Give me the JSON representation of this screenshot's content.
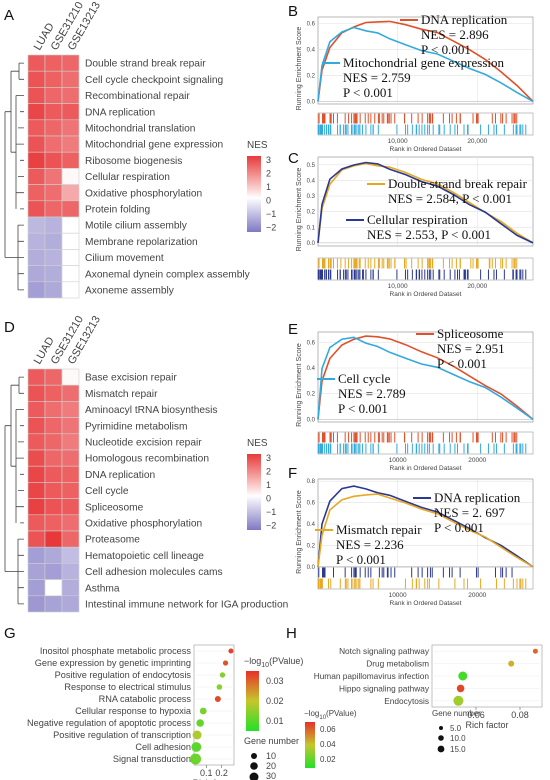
{
  "panel_labels": [
    "A",
    "B",
    "C",
    "D",
    "E",
    "F",
    "G",
    "H"
  ],
  "nes_legend": {
    "title": "NES",
    "ticks": [
      "3",
      "2",
      "1",
      "0",
      "−1",
      "−2"
    ]
  },
  "gsea_axes": {
    "ylabel": "Running Enrichment Score",
    "xlabel": "Rank in Ordered Dataset",
    "xticks": [
      "10,000",
      "20,000"
    ]
  },
  "gsea_axes_small": {
    "xticks": [
      "10000",
      "20000"
    ]
  },
  "dot_legend_G": {
    "color_title_pre": "−log",
    "color_title_sub": "10",
    "color_title_post": "(PValue)",
    "color_ticks": [
      "0.03",
      "0.02",
      "0.01"
    ],
    "size_title": "Gene number",
    "size_ticks": [
      "10",
      "20",
      "30"
    ]
  },
  "dot_legend_H": {
    "color_title_pre": "−log",
    "color_title_sub": "10",
    "color_title_post": "(PValue)",
    "color_ticks": [
      "0.06",
      "0.04",
      "0.02"
    ],
    "size_title": "Gene number",
    "size_ticks": [
      "5.0",
      "10.0",
      "15.0"
    ]
  },
  "chart_data": [
    {
      "panel": "A",
      "type": "heatmap",
      "columns": [
        "LUAD",
        "GSE31210",
        "GSE13213"
      ],
      "rows": [
        "Double strand break repair",
        "Cell cycle checkpoint signaling",
        "Recombinational repair",
        "DNA replication",
        "Mitochondrial translation",
        "Mitochondrial gene expression",
        "Ribosome biogenesis",
        "Cellular respiration",
        "Oxidative phosphorylation",
        "Protein folding",
        "Motile cilium assembly",
        "Membrane repolarization",
        "Cilium movement",
        "Axonemal dynein complex assembly",
        "Axoneme assembly"
      ],
      "values": [
        [
          2.5,
          2.4,
          2.3
        ],
        [
          2.6,
          2.4,
          2.2
        ],
        [
          2.6,
          2.3,
          2.2
        ],
        [
          2.8,
          2.5,
          2.5
        ],
        [
          2.5,
          2.3,
          2.1
        ],
        [
          2.6,
          2.2,
          2.0
        ],
        [
          2.9,
          2.6,
          2.4
        ],
        [
          2.5,
          2.1,
          0.1
        ],
        [
          2.4,
          2.2,
          1.3
        ],
        [
          2.6,
          2.3,
          2.3
        ],
        [
          -1.3,
          -1.4,
          0
        ],
        [
          -1.4,
          -1.5,
          0
        ],
        [
          -1.5,
          -1.4,
          0
        ],
        [
          -1.6,
          -1.5,
          0
        ],
        [
          -1.8,
          -1.6,
          0
        ]
      ],
      "color_range": [
        -2.5,
        3.2
      ]
    },
    {
      "panel": "B",
      "type": "line",
      "ylabel": "Running Enrichment Score",
      "xlabel": "Rank in Ordered Dataset",
      "xlim": [
        0,
        27000
      ],
      "ylim": [
        -0.02,
        0.65
      ],
      "yticks": [
        "0.0",
        "0.2",
        "0.4",
        "0.6"
      ],
      "xticks": [
        10000,
        20000
      ],
      "series": [
        {
          "name": "DNA replication",
          "nes": "NES = 2.896",
          "p": "P < 0.001",
          "color": "#e0502a",
          "x": [
            0,
            500,
            1500,
            3000,
            4500,
            6000,
            7500,
            9000,
            11000,
            13000,
            15000,
            17000,
            19000,
            21000,
            23000,
            25000,
            27000
          ],
          "y": [
            0,
            0.24,
            0.42,
            0.52,
            0.57,
            0.61,
            0.62,
            0.61,
            0.59,
            0.56,
            0.52,
            0.46,
            0.4,
            0.33,
            0.22,
            0.12,
            0
          ]
        },
        {
          "name": "Mitochondrial gene expression",
          "nes": "NES = 2.759",
          "p": "P < 0.001",
          "color": "#33aadd",
          "x": [
            0,
            500,
            1500,
            3000,
            4500,
            6000,
            7500,
            9000,
            11000,
            13000,
            15000,
            17000,
            19000,
            21000,
            23000,
            25000,
            27000
          ],
          "y": [
            0,
            0.28,
            0.45,
            0.53,
            0.57,
            0.55,
            0.52,
            0.48,
            0.44,
            0.4,
            0.36,
            0.31,
            0.26,
            0.2,
            0.14,
            0.07,
            0
          ]
        }
      ]
    },
    {
      "panel": "C",
      "type": "line",
      "ylabel": "Running Enrichment Score",
      "xlabel": "Rank in Ordered Dataset",
      "xlim": [
        0,
        27000
      ],
      "ylim": [
        -0.02,
        0.55
      ],
      "yticks": [
        "0.0",
        "0.1",
        "0.2",
        "0.3",
        "0.4",
        "0.5"
      ],
      "xticks": [
        10000,
        20000
      ],
      "series": [
        {
          "name": "Double strand break repair",
          "nes": "NES = 2.584, P < 0.001",
          "color": "#e8a820",
          "x": [
            0,
            500,
            1500,
            3000,
            4500,
            6000,
            7500,
            9000,
            11000,
            13000,
            15000,
            17000,
            19000,
            21000,
            23000,
            25000,
            27000
          ],
          "y": [
            0,
            0.22,
            0.38,
            0.46,
            0.49,
            0.51,
            0.5,
            0.48,
            0.45,
            0.41,
            0.37,
            0.32,
            0.26,
            0.2,
            0.13,
            0.06,
            0
          ]
        },
        {
          "name": "Cellular respiration",
          "nes": "NES = 2.553, P < 0.001",
          "color": "#2b3990",
          "x": [
            0,
            500,
            1500,
            3000,
            4500,
            6000,
            7500,
            9000,
            11000,
            13000,
            15000,
            17000,
            19000,
            21000,
            23000,
            25000,
            27000
          ],
          "y": [
            0,
            0.25,
            0.4,
            0.47,
            0.5,
            0.52,
            0.5,
            0.47,
            0.44,
            0.4,
            0.36,
            0.31,
            0.25,
            0.19,
            0.12,
            0.05,
            0
          ]
        }
      ]
    },
    {
      "panel": "D",
      "type": "heatmap",
      "columns": [
        "LUAD",
        "GSE31210",
        "GSE13213"
      ],
      "rows": [
        "Base excision repair",
        "Mismatch repair",
        "Aminoacyl tRNA biosynthesis",
        "Pyrimidine metabolism",
        "Nucleotide excision repair",
        "Homologous recombination",
        "DNA replication",
        "Cell cycle",
        "Spliceosome",
        "Oxidative phosphorylation",
        "Proteasome",
        "Hematopoietic cell lineage",
        "Cell adhesion molecules cams",
        "Asthma",
        "Intestinal immune network for IGA production"
      ],
      "values": [
        [
          2.5,
          2.3,
          0.1
        ],
        [
          2.6,
          2.4,
          2.2
        ],
        [
          2.5,
          2.2,
          2.0
        ],
        [
          2.6,
          2.3,
          2.1
        ],
        [
          2.5,
          2.3,
          2.0
        ],
        [
          2.7,
          2.3,
          2.2
        ],
        [
          2.8,
          2.5,
          2.4
        ],
        [
          2.8,
          2.5,
          2.4
        ],
        [
          2.9,
          2.6,
          2.5
        ],
        [
          2.5,
          2.4,
          2.2
        ],
        [
          2.6,
          3.1,
          2.3
        ],
        [
          -1.8,
          -1.6,
          -1.2
        ],
        [
          -1.7,
          -1.8,
          -1.4
        ],
        [
          -1.8,
          0,
          -1.5
        ],
        [
          -1.9,
          -1.7,
          -1.6
        ]
      ],
      "color_range": [
        -2.5,
        3.2
      ]
    },
    {
      "panel": "E",
      "type": "line",
      "ylabel": "Running Enrichment Score",
      "xlabel": "Rank in Ordered Dataset",
      "xlim": [
        0,
        27000
      ],
      "ylim": [
        -0.02,
        0.68
      ],
      "yticks": [
        "0.0",
        "0.2",
        "0.4",
        "0.6"
      ],
      "xticks": [
        10000,
        20000
      ],
      "series": [
        {
          "name": "Spliceosome",
          "nes": "NES = 2.951",
          "p": "P < 0.001",
          "color": "#e0502a",
          "x": [
            0,
            500,
            1500,
            3000,
            4500,
            6000,
            7500,
            9000,
            11000,
            13000,
            15000,
            17000,
            19000,
            21000,
            23000,
            25000,
            27000
          ],
          "y": [
            0,
            0.3,
            0.48,
            0.57,
            0.62,
            0.65,
            0.65,
            0.62,
            0.58,
            0.53,
            0.47,
            0.41,
            0.34,
            0.27,
            0.19,
            0.1,
            0
          ]
        },
        {
          "name": "Cell cycle",
          "nes": "NES = 2.789",
          "p": "P < 0.001",
          "color": "#33aadd",
          "x": [
            0,
            500,
            1500,
            3000,
            4500,
            6000,
            7500,
            9000,
            11000,
            13000,
            15000,
            17000,
            19000,
            21000,
            23000,
            25000,
            27000
          ],
          "y": [
            0,
            0.4,
            0.55,
            0.62,
            0.64,
            0.6,
            0.56,
            0.52,
            0.48,
            0.44,
            0.4,
            0.35,
            0.3,
            0.24,
            0.17,
            0.09,
            0
          ]
        }
      ]
    },
    {
      "panel": "F",
      "type": "line",
      "ylabel": "Running Enrichment Score",
      "xlabel": "Rank in Ordered Dataset",
      "xlim": [
        0,
        27000
      ],
      "ylim": [
        -0.02,
        0.82
      ],
      "yticks": [
        "0.0",
        "0.2",
        "0.4",
        "0.6",
        "0.8"
      ],
      "xticks": [
        10000,
        20000
      ],
      "series": [
        {
          "name": "DNA replication",
          "nes": "NES = 2. 697",
          "p": "P < 0.001",
          "color": "#2b3990",
          "x": [
            0,
            500,
            1500,
            3000,
            4500,
            6000,
            7500,
            9000,
            11000,
            13000,
            15000,
            17000,
            19000,
            21000,
            23000,
            25000,
            27000
          ],
          "y": [
            0,
            0.4,
            0.62,
            0.72,
            0.75,
            0.73,
            0.7,
            0.66,
            0.61,
            0.56,
            0.5,
            0.43,
            0.36,
            0.28,
            0.19,
            0.1,
            0
          ]
        },
        {
          "name": "Mismatch repair",
          "nes": "NES = 2.236",
          "p": "P < 0.001",
          "color": "#e8a820",
          "x": [
            0,
            500,
            1500,
            3000,
            4500,
            6000,
            7500,
            9000,
            11000,
            13000,
            15000,
            17000,
            19000,
            21000,
            23000,
            25000,
            27000
          ],
          "y": [
            0,
            0.3,
            0.52,
            0.62,
            0.66,
            0.68,
            0.67,
            0.64,
            0.6,
            0.55,
            0.49,
            0.42,
            0.35,
            0.27,
            0.18,
            0.09,
            0
          ]
        }
      ]
    },
    {
      "panel": "G",
      "type": "scatter",
      "xlabel": "Rich factor",
      "xlim": [
        0.02,
        0.28
      ],
      "xticks": [
        "0.1",
        "0.2"
      ],
      "categories": [
        "Inositol phosphate metabolic process",
        "Gene expression by genetic imprinting",
        "Positive regulation of endocytosis",
        "Response to electrical stimulus",
        "RNA catabolic process",
        "Cellular response to hypoxia",
        "Negative regulation of apoptotic process",
        "Positive regulation of transcription",
        "Cell adhesion",
        "Signal transduction"
      ],
      "x": [
        0.26,
        0.225,
        0.205,
        0.185,
        0.175,
        0.08,
        0.06,
        0.04,
        0.035,
        0.03
      ],
      "pvalue_log": [
        0.038,
        0.036,
        0.015,
        0.016,
        0.037,
        0.014,
        0.012,
        0.02,
        0.011,
        0.013
      ],
      "gene_number": [
        5,
        6,
        7,
        8,
        10,
        14,
        18,
        24,
        28,
        34
      ],
      "color_range": [
        0.005,
        0.04
      ]
    },
    {
      "panel": "H",
      "type": "scatter",
      "xlabel": "Rich factor",
      "xlim": [
        0.04,
        0.09
      ],
      "xticks": [
        "0.06",
        "0.08"
      ],
      "categories": [
        "Notch signaling pathway",
        "Drug metabolism",
        "Human papillomavirus infection",
        "Hippo signaling pathway",
        "Endocytosis"
      ],
      "x": [
        0.087,
        0.076,
        0.054,
        0.053,
        0.052
      ],
      "pvalue_log": [
        0.058,
        0.042,
        0.012,
        0.065,
        0.03
      ],
      "gene_number": [
        6,
        8,
        14,
        11,
        16
      ],
      "color_range": [
        0.005,
        0.07
      ]
    }
  ]
}
